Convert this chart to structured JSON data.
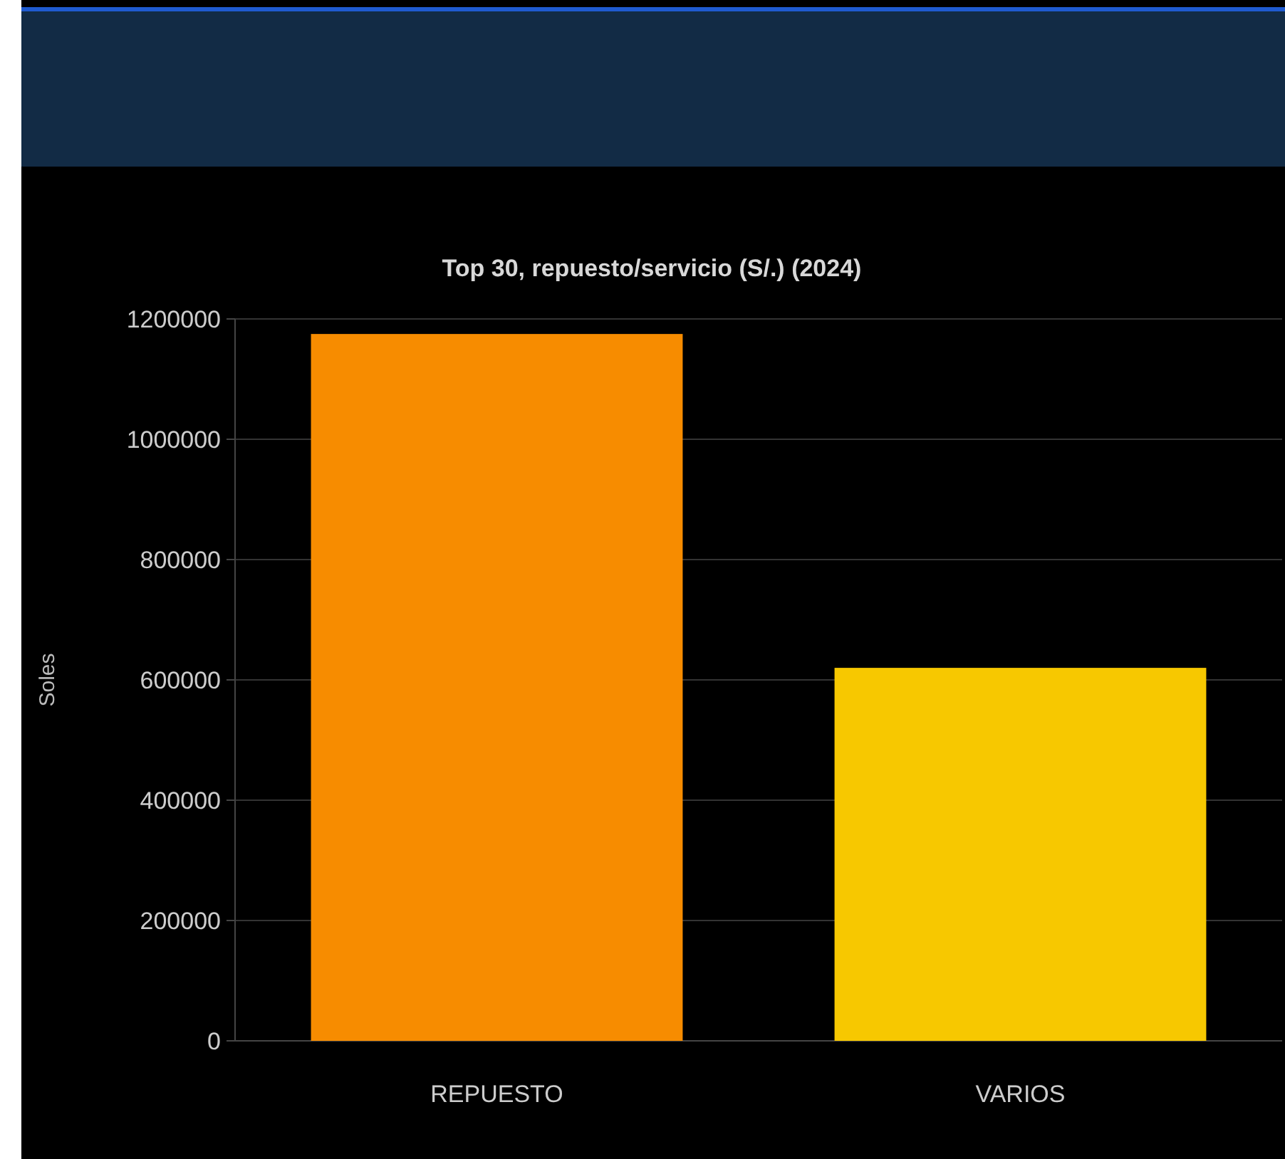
{
  "chart_data": {
    "type": "bar",
    "title": "Top 30, repuesto/servicio (S/.) (2024)",
    "ylabel": "Soles",
    "categories": [
      "REPUESTO",
      "VARIOS"
    ],
    "values": [
      1175000,
      620000
    ],
    "colors": [
      "#f78c00",
      "#f7c800"
    ],
    "ylim": [
      0,
      1200000
    ],
    "yticks": [
      0,
      200000,
      400000,
      600000,
      800000,
      1000000,
      1200000
    ],
    "grid": "y"
  }
}
